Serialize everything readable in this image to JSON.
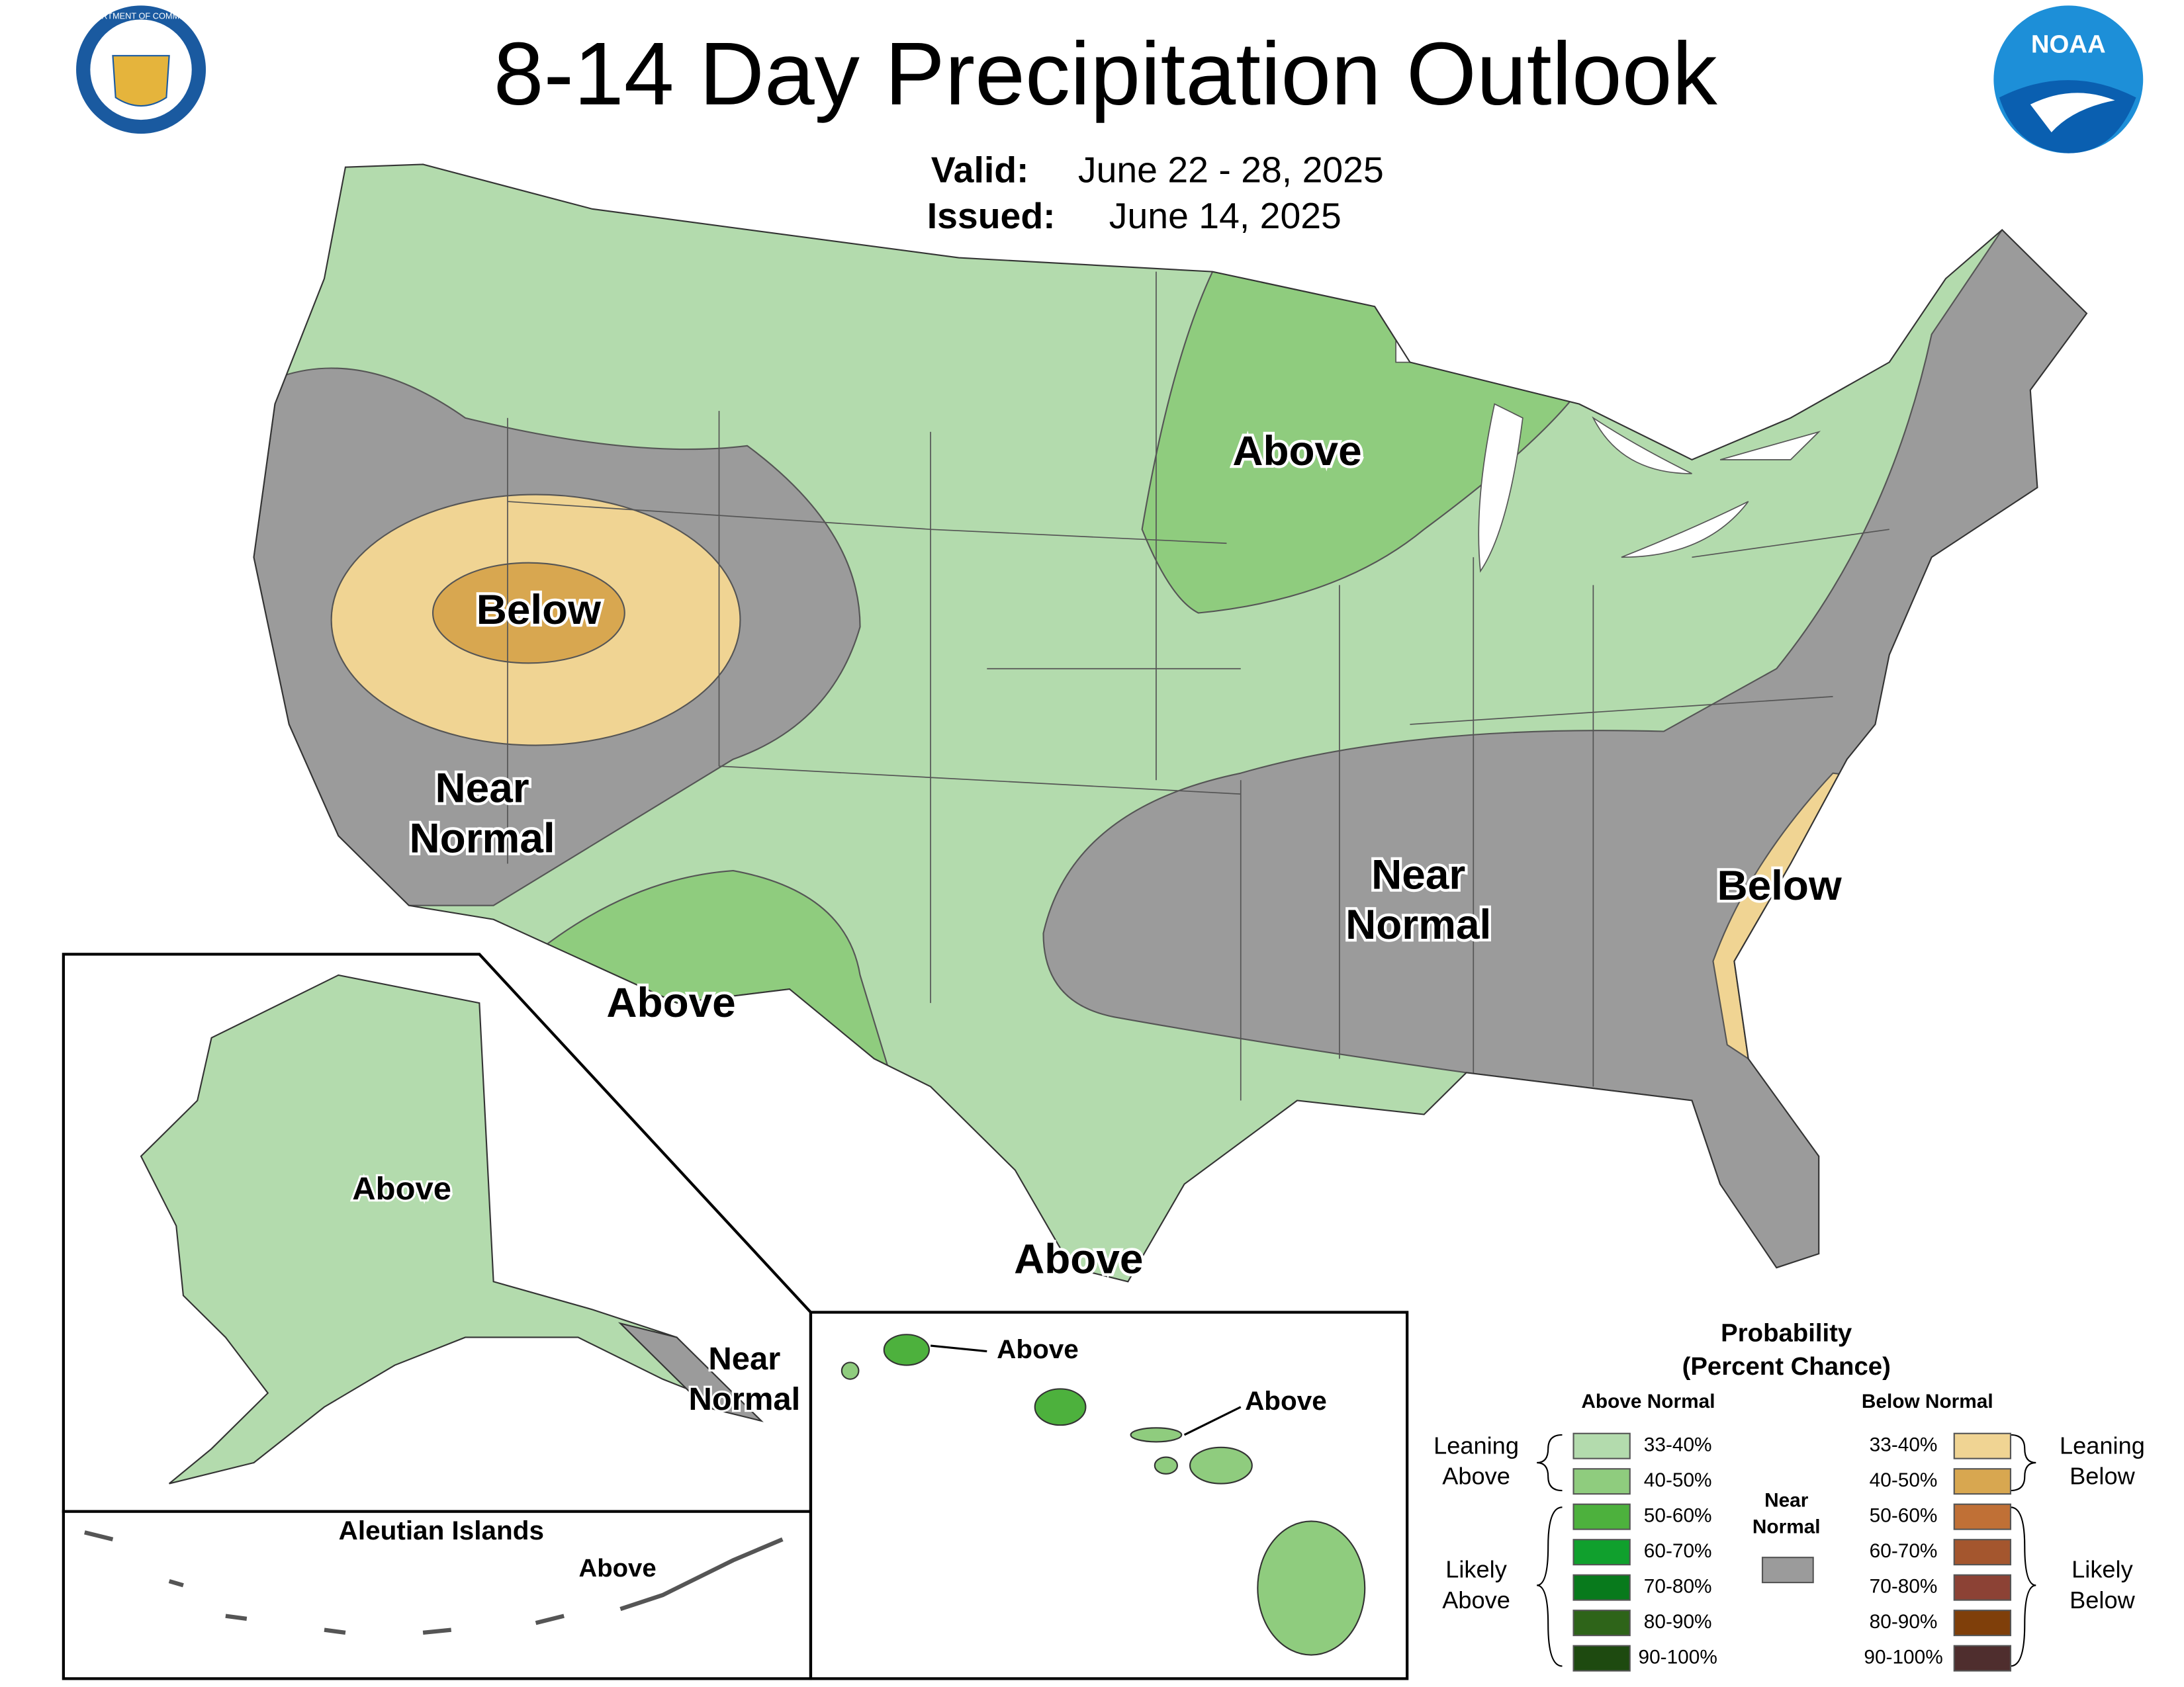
{
  "header": {
    "title": "8-14 Day Precipitation Outlook",
    "valid_label": "Valid:",
    "valid": "June 22 - 28, 2025",
    "issued_label": "Issued:",
    "issued": "June 14, 2025",
    "left_logo": "DEPARTMENT OF COMMERCE",
    "right_logo": "NOAA"
  },
  "map_labels": [
    {
      "lines": [
        "Above"
      ]
    },
    {
      "lines": [
        "Below"
      ]
    },
    {
      "lines": [
        "Near",
        "Normal"
      ]
    },
    {
      "lines": [
        "Near",
        "Normal"
      ]
    },
    {
      "lines": [
        "Below"
      ]
    },
    {
      "lines": [
        "Above"
      ]
    },
    {
      "lines": [
        "Above"
      ]
    }
  ],
  "alaska": {
    "labels": [
      {
        "lines": [
          "Above"
        ]
      },
      {
        "lines": [
          "Near",
          "Normal"
        ]
      }
    ]
  },
  "aleutians": {
    "title": "Aleutian Islands",
    "label": "Above"
  },
  "hawaii": {
    "labels": [
      "Above",
      "Above"
    ]
  },
  "legend": {
    "title": "Probability",
    "subtitle": "(Percent Chance)",
    "above": {
      "heading": "Above Normal",
      "rows": [
        {
          "label": "33-40%",
          "color": "#b3dbad"
        },
        {
          "label": "40-50%",
          "color": "#8fcc7e"
        },
        {
          "label": "50-60%",
          "color": "#4db13d"
        },
        {
          "label": "60-70%",
          "color": "#10a02d"
        },
        {
          "label": "70-80%",
          "color": "#087a1c"
        },
        {
          "label": "80-90%",
          "color": "#2e6419"
        },
        {
          "label": "90-100%",
          "color": "#1e4a10"
        }
      ],
      "leaning": [
        "Leaning",
        "Above"
      ],
      "likely": [
        "Likely",
        "Above"
      ]
    },
    "below": {
      "heading": "Below Normal",
      "rows": [
        {
          "label": "33-40%",
          "color": "#f0d493"
        },
        {
          "label": "40-50%",
          "color": "#d8a750"
        },
        {
          "label": "50-60%",
          "color": "#c07036"
        },
        {
          "label": "60-70%",
          "color": "#a4562e"
        },
        {
          "label": "70-80%",
          "color": "#8c4235"
        },
        {
          "label": "80-90%",
          "color": "#7f3f0a"
        },
        {
          "label": "90-100%",
          "color": "#4f2e2e"
        }
      ],
      "leaning": [
        "Leaning",
        "Below"
      ],
      "likely": [
        "Likely",
        "Below"
      ]
    },
    "near": {
      "lines": [
        "Near",
        "Normal"
      ],
      "color": "#9b9b9b"
    }
  }
}
